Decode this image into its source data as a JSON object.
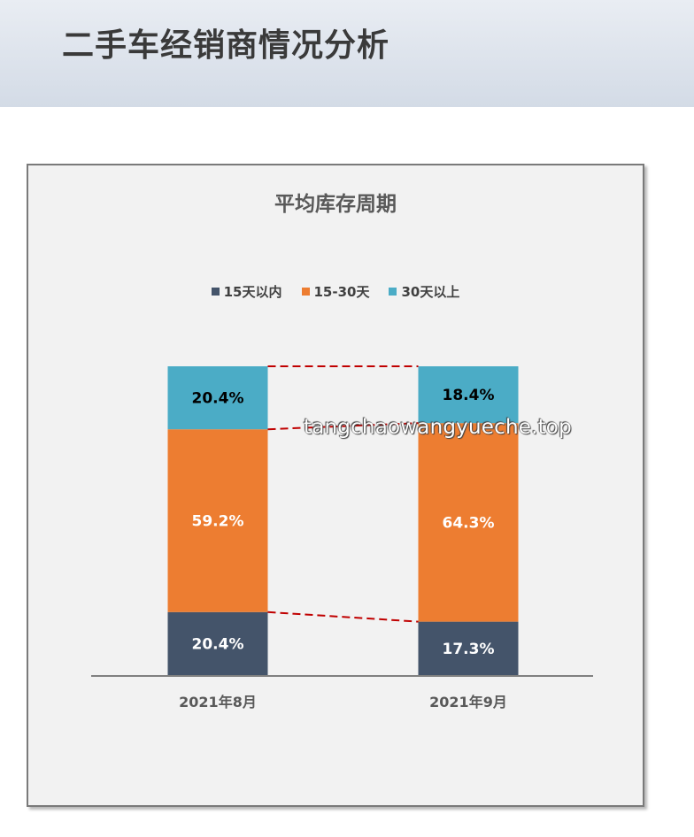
{
  "header": {
    "title": "二手车经销商情况分析"
  },
  "watermark": "tangchaowangyueche.top",
  "chart_data": {
    "type": "bar",
    "stacked": true,
    "title": "平均库存周期",
    "categories": [
      "2021年8月",
      "2021年9月"
    ],
    "series": [
      {
        "name": "15天以内",
        "values": [
          20.4,
          17.3
        ],
        "labels": [
          "20.4%",
          "17.3%"
        ],
        "color": "#44546a",
        "label_color": "#ffffff"
      },
      {
        "name": "15-30天",
        "values": [
          59.2,
          64.3
        ],
        "labels": [
          "59.2%",
          "64.3%"
        ],
        "color": "#ed7d31",
        "label_color": "#ffffff"
      },
      {
        "name": "30天以上",
        "values": [
          20.4,
          18.4
        ],
        "labels": [
          "20.4%",
          "18.4%"
        ],
        "color": "#4bacc6",
        "label_color": "#000000"
      }
    ],
    "ylim": [
      0,
      100
    ],
    "legend": "top",
    "series_lines": true,
    "series_line_color": "#c00000",
    "grid": false
  }
}
